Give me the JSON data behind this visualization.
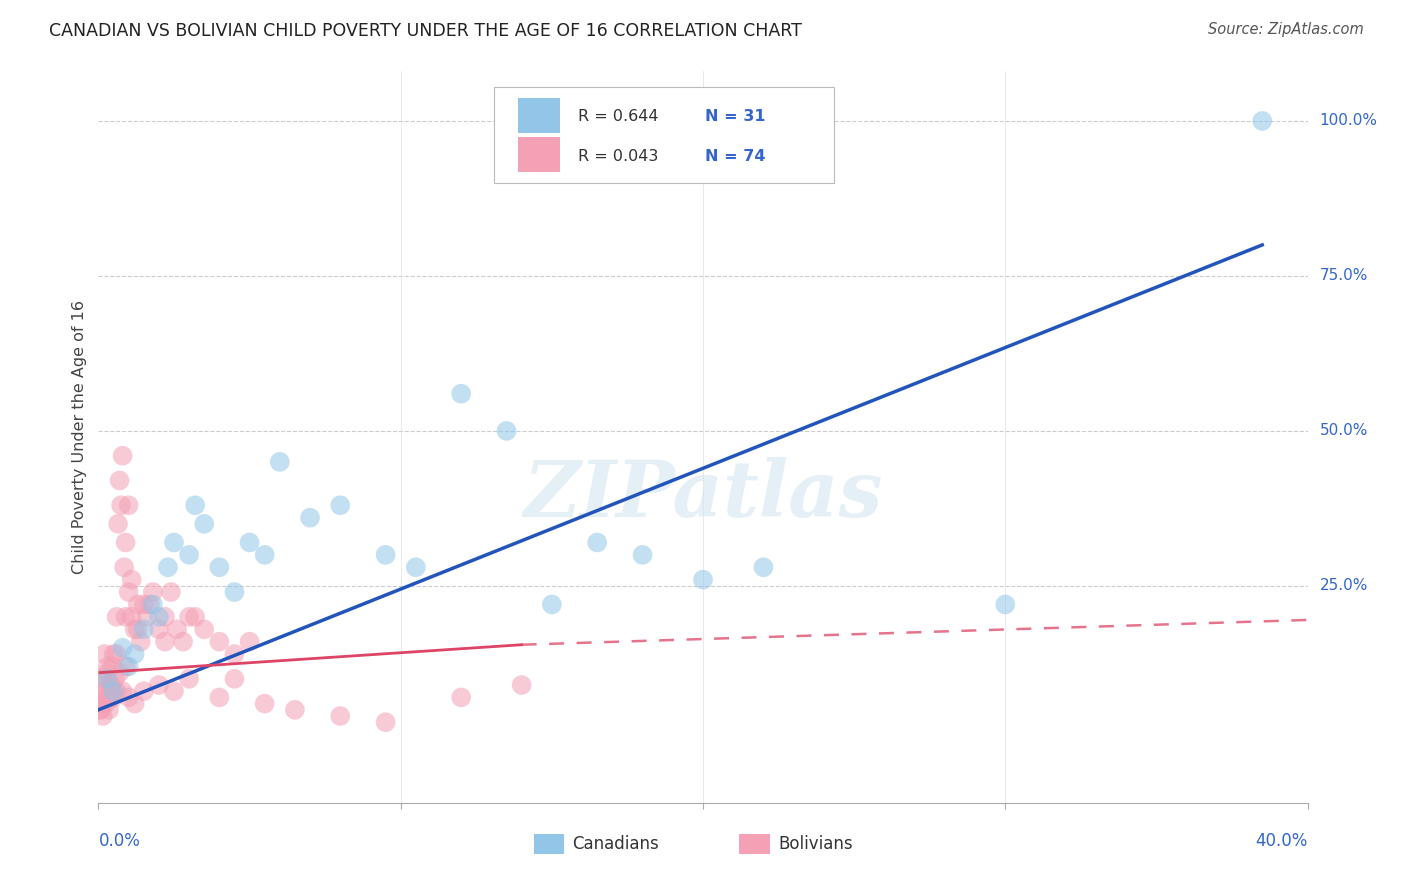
{
  "title": "CANADIAN VS BOLIVIAN CHILD POVERTY UNDER THE AGE OF 16 CORRELATION CHART",
  "source": "Source: ZipAtlas.com",
  "ylabel": "Child Poverty Under the Age of 16",
  "ytick_labels": [
    "25.0%",
    "50.0%",
    "75.0%",
    "100.0%"
  ],
  "ytick_values": [
    25,
    50,
    75,
    100
  ],
  "xmin": 0.0,
  "xmax": 40.0,
  "ymin": -10,
  "ymax": 108,
  "canadians_R": 0.644,
  "canadians_N": 31,
  "bolivians_R": 0.043,
  "bolivians_N": 74,
  "canadian_color": "#92C5E8",
  "bolivian_color": "#F4A0B5",
  "canadian_line_color": "#2255BB",
  "bolivian_line_color": "#DD4466",
  "watermark": "ZIPatlas",
  "canadian_scatter_x": [
    0.3,
    0.5,
    0.8,
    1.0,
    1.2,
    1.5,
    1.8,
    2.0,
    2.3,
    2.5,
    3.0,
    3.2,
    3.5,
    4.0,
    4.5,
    5.0,
    5.5,
    6.0,
    7.0,
    8.0,
    9.5,
    10.5,
    12.0,
    13.5,
    15.0,
    16.5,
    18.0,
    20.0,
    22.0,
    30.0,
    38.5
  ],
  "canadian_scatter_y": [
    10,
    8,
    15,
    12,
    14,
    18,
    22,
    20,
    28,
    32,
    30,
    38,
    35,
    28,
    24,
    32,
    30,
    45,
    36,
    38,
    30,
    28,
    56,
    50,
    22,
    32,
    30,
    26,
    28,
    22,
    100
  ],
  "bolivian_scatter_x": [
    0.05,
    0.1,
    0.1,
    0.15,
    0.2,
    0.2,
    0.25,
    0.3,
    0.3,
    0.35,
    0.4,
    0.4,
    0.45,
    0.5,
    0.5,
    0.55,
    0.6,
    0.6,
    0.65,
    0.7,
    0.75,
    0.8,
    0.85,
    0.9,
    0.9,
    1.0,
    1.0,
    1.1,
    1.2,
    1.3,
    1.4,
    1.5,
    1.6,
    1.8,
    2.0,
    2.2,
    2.4,
    2.6,
    2.8,
    3.0,
    3.5,
    4.0,
    4.5,
    5.0,
    0.05,
    0.1,
    0.15,
    0.2,
    0.3,
    0.4,
    0.5,
    0.7,
    0.8,
    1.0,
    1.2,
    1.5,
    2.0,
    2.5,
    3.0,
    4.0,
    5.5,
    6.5,
    8.0,
    9.5,
    12.0,
    14.0,
    0.6,
    0.9,
    1.1,
    1.3,
    1.7,
    2.2,
    3.2,
    4.5
  ],
  "bolivian_scatter_y": [
    6,
    5,
    10,
    4,
    7,
    14,
    6,
    8,
    11,
    5,
    9,
    7,
    12,
    8,
    14,
    10,
    8,
    20,
    35,
    42,
    38,
    46,
    28,
    32,
    20,
    24,
    38,
    26,
    18,
    22,
    16,
    22,
    20,
    24,
    18,
    20,
    24,
    18,
    16,
    20,
    18,
    16,
    14,
    16,
    5,
    8,
    6,
    10,
    12,
    9,
    7,
    11,
    8,
    7,
    6,
    8,
    9,
    8,
    10,
    7,
    6,
    5,
    4,
    3,
    7,
    9,
    14,
    12,
    20,
    18,
    22,
    16,
    20,
    10
  ],
  "can_line_x0": 0.0,
  "can_line_y0": 5.0,
  "can_line_x1": 38.5,
  "can_line_y1": 80.0,
  "bol_solid_x0": 0.05,
  "bol_solid_y0": 11.0,
  "bol_solid_x1": 14.0,
  "bol_solid_y1": 15.5,
  "bol_dash_x0": 14.0,
  "bol_dash_y0": 15.5,
  "bol_dash_x1": 40.0,
  "bol_dash_y1": 19.5
}
